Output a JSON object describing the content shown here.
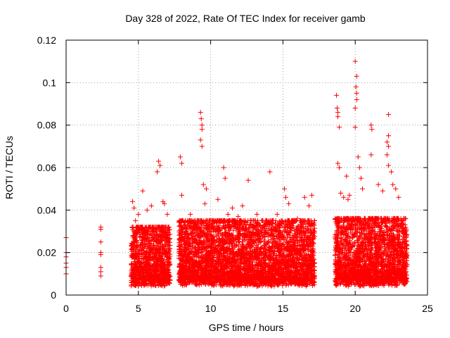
{
  "chart_data": {
    "type": "scatter",
    "title": "Day 328 of 2022, Rate Of TEC Index for receiver gamb",
    "xlabel": "GPS time / hours",
    "ylabel": "ROTI / TECUs",
    "xlim": [
      0,
      25
    ],
    "ylim": [
      0,
      0.12
    ],
    "xticks": [
      "0",
      "5",
      "10",
      "15",
      "20",
      "25"
    ],
    "yticks": [
      "0",
      "0.02",
      "0.04",
      "0.06",
      "0.08",
      "0.1",
      "0.12"
    ],
    "grid": true,
    "marker": "+",
    "color": "#ff0000",
    "points": [
      [
        0.0,
        0.027
      ],
      [
        0.0,
        0.02
      ],
      [
        0.0,
        0.018
      ],
      [
        0.0,
        0.015
      ],
      [
        0.0,
        0.013
      ],
      [
        0.0,
        0.01
      ],
      [
        2.4,
        0.032
      ],
      [
        2.4,
        0.031
      ],
      [
        2.4,
        0.025
      ],
      [
        2.4,
        0.02
      ],
      [
        2.4,
        0.019
      ],
      [
        2.4,
        0.013
      ],
      [
        2.4,
        0.011
      ],
      [
        2.4,
        0.009
      ],
      [
        4.6,
        0.044
      ],
      [
        4.7,
        0.041
      ],
      [
        4.8,
        0.035
      ],
      [
        5.0,
        0.038
      ],
      [
        5.3,
        0.049
      ],
      [
        5.6,
        0.04
      ],
      [
        5.9,
        0.042
      ],
      [
        6.3,
        0.058
      ],
      [
        6.4,
        0.063
      ],
      [
        6.5,
        0.061
      ],
      [
        6.7,
        0.044
      ],
      [
        6.8,
        0.043
      ],
      [
        7.0,
        0.038
      ],
      [
        7.9,
        0.065
      ],
      [
        8.0,
        0.062
      ],
      [
        8.0,
        0.047
      ],
      [
        8.3,
        0.03
      ],
      [
        8.6,
        0.038
      ],
      [
        9.3,
        0.086
      ],
      [
        9.35,
        0.083
      ],
      [
        9.4,
        0.08
      ],
      [
        9.4,
        0.078
      ],
      [
        9.3,
        0.073
      ],
      [
        9.4,
        0.07
      ],
      [
        9.5,
        0.052
      ],
      [
        9.7,
        0.05
      ],
      [
        9.6,
        0.043
      ],
      [
        10.5,
        0.045
      ],
      [
        10.9,
        0.06
      ],
      [
        11.0,
        0.055
      ],
      [
        11.2,
        0.038
      ],
      [
        11.5,
        0.041
      ],
      [
        11.9,
        0.037
      ],
      [
        12.2,
        0.042
      ],
      [
        12.6,
        0.054
      ],
      [
        13.2,
        0.038
      ],
      [
        13.6,
        0.035
      ],
      [
        14.1,
        0.058
      ],
      [
        14.6,
        0.038
      ],
      [
        15.1,
        0.05
      ],
      [
        15.2,
        0.046
      ],
      [
        15.4,
        0.043
      ],
      [
        15.6,
        0.034
      ],
      [
        16.0,
        0.036
      ],
      [
        16.5,
        0.046
      ],
      [
        16.8,
        0.042
      ],
      [
        17.0,
        0.047
      ],
      [
        18.7,
        0.094
      ],
      [
        18.75,
        0.088
      ],
      [
        18.8,
        0.086
      ],
      [
        18.8,
        0.084
      ],
      [
        18.9,
        0.079
      ],
      [
        18.8,
        0.062
      ],
      [
        18.9,
        0.06
      ],
      [
        19.0,
        0.048
      ],
      [
        19.2,
        0.046
      ],
      [
        19.4,
        0.056
      ],
      [
        19.5,
        0.045
      ],
      [
        19.6,
        0.047
      ],
      [
        20.0,
        0.11
      ],
      [
        20.1,
        0.103
      ],
      [
        20.05,
        0.098
      ],
      [
        20.1,
        0.095
      ],
      [
        20.1,
        0.092
      ],
      [
        20.0,
        0.088
      ],
      [
        20.0,
        0.079
      ],
      [
        20.2,
        0.065
      ],
      [
        20.3,
        0.06
      ],
      [
        20.4,
        0.055
      ],
      [
        20.5,
        0.05
      ],
      [
        21.1,
        0.08
      ],
      [
        21.15,
        0.078
      ],
      [
        21.1,
        0.066
      ],
      [
        21.6,
        0.052
      ],
      [
        21.9,
        0.049
      ],
      [
        22.3,
        0.085
      ],
      [
        22.3,
        0.075
      ],
      [
        22.2,
        0.072
      ],
      [
        22.3,
        0.07
      ],
      [
        22.2,
        0.066
      ],
      [
        22.3,
        0.061
      ],
      [
        22.5,
        0.058
      ],
      [
        22.6,
        0.052
      ],
      [
        22.8,
        0.05
      ],
      [
        23.0,
        0.046
      ],
      [
        23.3,
        0.035
      ]
    ],
    "dense_clusters": [
      {
        "x": [
          4.5,
          7.2
        ],
        "y_min": 0.004,
        "y_max": 0.032
      },
      {
        "x": [
          7.8,
          17.2
        ],
        "y_min": 0.004,
        "y_max": 0.035
      },
      {
        "x": [
          18.6,
          23.6
        ],
        "y_min": 0.004,
        "y_max": 0.036
      }
    ]
  }
}
